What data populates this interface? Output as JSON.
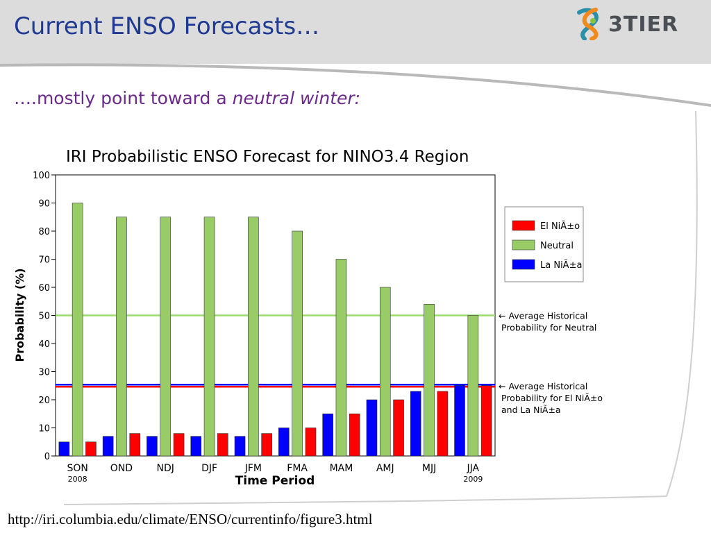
{
  "slide": {
    "title": "Current ENSO Forecasts…",
    "subtitle_prefix": "….mostly point toward a ",
    "subtitle_emphasis": "neutral winter:",
    "logo_text": "3TIER",
    "source_url": "http://iri.columbia.edu/climate/ENSO/currentinfo/figure3.html"
  },
  "chart_data": {
    "type": "bar",
    "title": "IRI Probabilistic ENSO Forecast for NINO3.4 Region",
    "xlabel": "Time Period",
    "ylabel": "Probability (%)",
    "ylim": [
      0,
      100
    ],
    "yticks": [
      0,
      10,
      20,
      30,
      40,
      50,
      60,
      70,
      80,
      90,
      100
    ],
    "categories": [
      "SON",
      "OND",
      "NDJ",
      "DJF",
      "JFM",
      "FMA",
      "MAM",
      "AMJ",
      "MJJ",
      "JJA"
    ],
    "category_sublabels": {
      "SON": "2008",
      "JJA": "2009"
    },
    "series": [
      {
        "name": "La NiÃ±a",
        "color": "#0000ff",
        "values": [
          5,
          7,
          7,
          7,
          7,
          10,
          15,
          20,
          23,
          25
        ]
      },
      {
        "name": "Neutral",
        "color": "#99cc66",
        "values": [
          90,
          85,
          85,
          85,
          85,
          80,
          70,
          60,
          54,
          50
        ]
      },
      {
        "name": "El NiÃ±o",
        "color": "#ff0000",
        "values": [
          5,
          8,
          8,
          8,
          8,
          10,
          15,
          20,
          23,
          25
        ]
      }
    ],
    "legend": {
      "placement": "right",
      "entries": [
        {
          "label": "El NiÃ±o",
          "color": "#ff0000"
        },
        {
          "label": "Neutral",
          "color": "#99cc66"
        },
        {
          "label": "La NiÃ±a",
          "color": "#0000ff"
        }
      ]
    },
    "reference_lines": [
      {
        "value": 50,
        "color": "#99dd66",
        "label_lines": [
          "← Average Historical",
          "Probability for Neutral"
        ]
      },
      {
        "value": 25,
        "colors": [
          "#0000ff",
          "#ff0000"
        ],
        "label_lines": [
          "← Average Historical",
          "Probability for El NiÃ±o",
          "and La NiÃ±a"
        ]
      }
    ],
    "grid": false
  }
}
